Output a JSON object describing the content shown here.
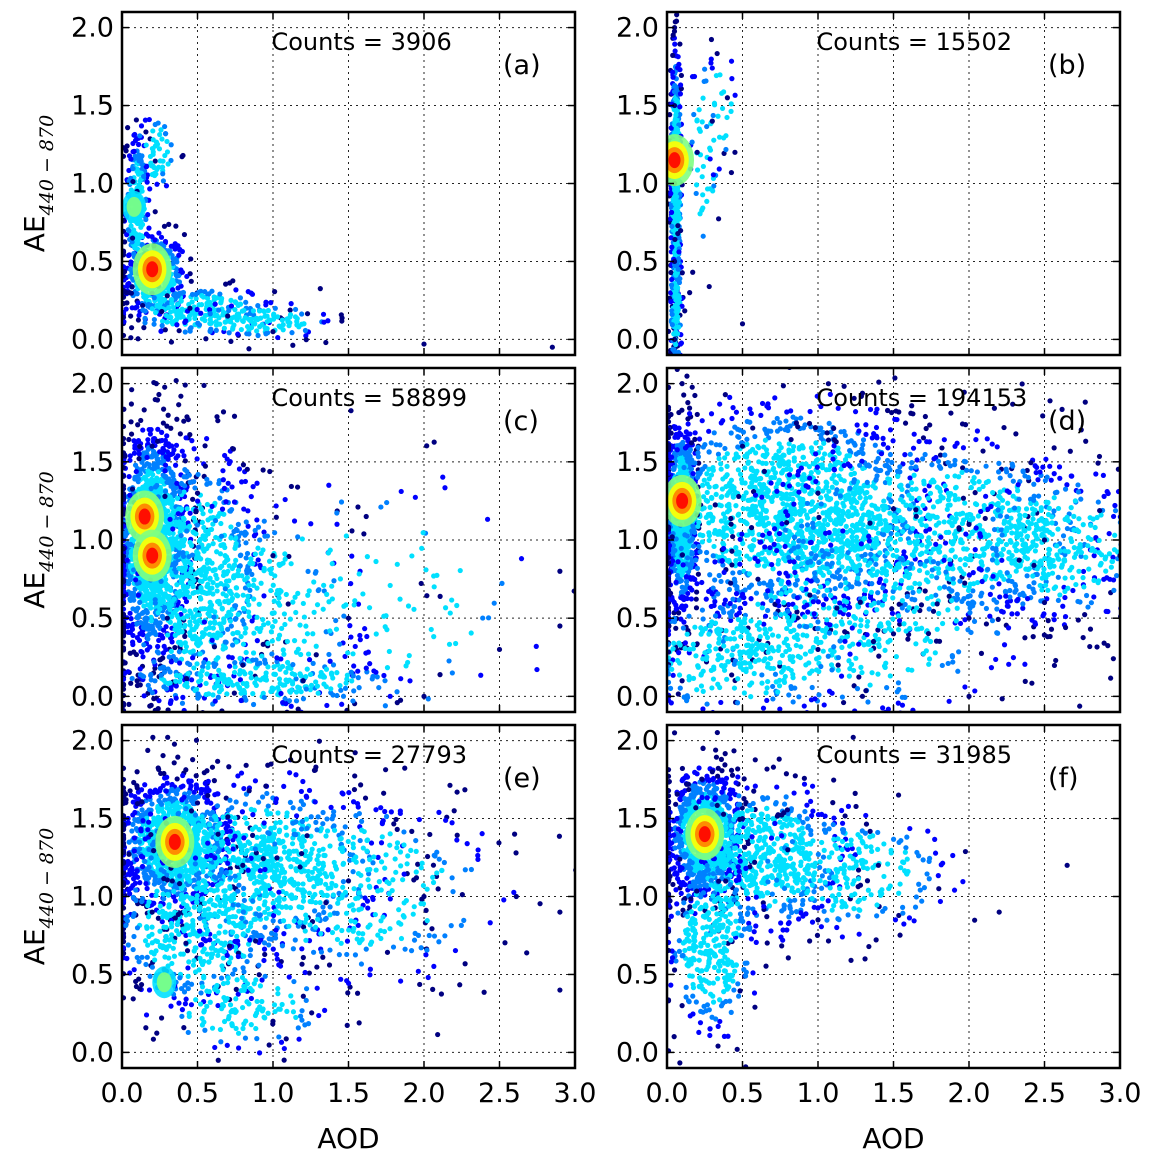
{
  "chart_data": {
    "type": "scatter",
    "layout": "3 rows x 2 columns",
    "xlabel": "AOD",
    "ylabel_main": "AE",
    "ylabel_subscript": "440 − 870",
    "xlim": [
      0.0,
      3.0
    ],
    "ylim": [
      -0.1,
      2.1
    ],
    "xticks": [
      "0.0",
      "0.5",
      "1.0",
      "1.5",
      "2.0",
      "2.5",
      "3.0"
    ],
    "yticks": [
      "0.0",
      "0.5",
      "1.0",
      "1.5",
      "2.0"
    ],
    "grid": true,
    "colormap": [
      "#000080",
      "#0000ff",
      "#0080ff",
      "#00e0ff",
      "#80ff80",
      "#ffff00",
      "#ff8000",
      "#ff0000",
      "#800000"
    ],
    "panels": [
      {
        "tag": "(a)",
        "counts_label": "Counts = 3906",
        "counts": 3906,
        "density_peaks": [
          {
            "aod": 0.2,
            "ae": 0.45,
            "level": "high"
          },
          {
            "aod": 0.08,
            "ae": 0.85,
            "level": "medium"
          }
        ],
        "points": [
          [
            0.05,
            0.3
          ],
          [
            0.07,
            0.65
          ],
          [
            0.1,
            0.95
          ],
          [
            0.15,
            0.55
          ],
          [
            0.2,
            0.45
          ],
          [
            0.3,
            0.28
          ],
          [
            0.45,
            0.2
          ],
          [
            0.7,
            0.15
          ],
          [
            1.0,
            0.05
          ],
          [
            1.35,
            -0.02
          ],
          [
            2.0,
            -0.03
          ],
          [
            2.85,
            -0.05
          ]
        ]
      },
      {
        "tag": "(b)",
        "counts_label": "Counts = 15502",
        "counts": 15502,
        "density_peaks": [
          {
            "aod": 0.05,
            "ae": 1.15,
            "level": "high"
          }
        ],
        "points": [
          [
            0.05,
            0.0
          ],
          [
            0.05,
            0.5
          ],
          [
            0.05,
            1.0
          ],
          [
            0.05,
            1.5
          ],
          [
            0.05,
            2.0
          ],
          [
            0.15,
            0.3
          ],
          [
            0.2,
            1.2
          ],
          [
            0.3,
            1.4
          ],
          [
            0.4,
            1.55
          ],
          [
            0.45,
            1.2
          ],
          [
            0.5,
            0.1
          ]
        ]
      },
      {
        "tag": "(c)",
        "counts_label": "Counts = 58899",
        "counts": 58899,
        "density_peaks": [
          {
            "aod": 0.15,
            "ae": 1.15,
            "level": "high"
          },
          {
            "aod": 0.2,
            "ae": 0.9,
            "level": "high"
          }
        ],
        "points": [
          [
            0.1,
            0.1
          ],
          [
            0.2,
            1.6
          ],
          [
            0.3,
            0.5
          ],
          [
            0.5,
            1.3
          ],
          [
            0.8,
            0.2
          ],
          [
            1.0,
            0.9
          ],
          [
            1.2,
            0.1
          ],
          [
            1.5,
            0.5
          ],
          [
            2.0,
            0.0
          ],
          [
            2.5,
            0.3
          ],
          [
            2.9,
            0.45
          ],
          [
            2.9,
            0.8
          ]
        ]
      },
      {
        "tag": "(d)",
        "counts_label": "Counts = 194153",
        "counts": 194153,
        "density_peaks": [
          {
            "aod": 0.1,
            "ae": 1.25,
            "level": "high"
          }
        ],
        "points": [
          [
            0.1,
            0.1
          ],
          [
            0.1,
            2.0
          ],
          [
            0.5,
            1.6
          ],
          [
            1.0,
            1.3
          ],
          [
            1.5,
            1.2
          ],
          [
            2.0,
            1.1
          ],
          [
            2.5,
            1.0
          ],
          [
            3.0,
            0.9
          ],
          [
            1.0,
            0.3
          ],
          [
            1.5,
            0.4
          ],
          [
            2.0,
            0.5
          ],
          [
            2.5,
            0.6
          ],
          [
            2.0,
            0.0
          ]
        ]
      },
      {
        "tag": "(e)",
        "counts_label": "Counts = 27793",
        "counts": 27793,
        "density_peaks": [
          {
            "aod": 0.35,
            "ae": 1.35,
            "level": "high"
          },
          {
            "aod": 0.28,
            "ae": 0.45,
            "level": "medium"
          }
        ],
        "points": [
          [
            0.1,
            1.8
          ],
          [
            0.2,
            0.9
          ],
          [
            0.5,
            1.6
          ],
          [
            0.8,
            1.2
          ],
          [
            1.0,
            0.2
          ],
          [
            1.5,
            1.1
          ],
          [
            2.0,
            1.0
          ],
          [
            2.2,
            1.55
          ],
          [
            2.6,
            1.4
          ],
          [
            2.9,
            0.9
          ],
          [
            2.9,
            0.4
          ]
        ]
      },
      {
        "tag": "(f)",
        "counts_label": "Counts = 31985",
        "counts": 31985,
        "density_peaks": [
          {
            "aod": 0.25,
            "ae": 1.4,
            "level": "high"
          }
        ],
        "points": [
          [
            0.05,
            2.05
          ],
          [
            0.1,
            0.3
          ],
          [
            0.3,
            1.8
          ],
          [
            0.5,
            1.5
          ],
          [
            0.8,
            1.3
          ],
          [
            1.0,
            0.85
          ],
          [
            1.4,
            1.2
          ],
          [
            1.8,
            1.05
          ],
          [
            2.2,
            0.9
          ],
          [
            2.65,
            1.2
          ]
        ]
      }
    ]
  }
}
